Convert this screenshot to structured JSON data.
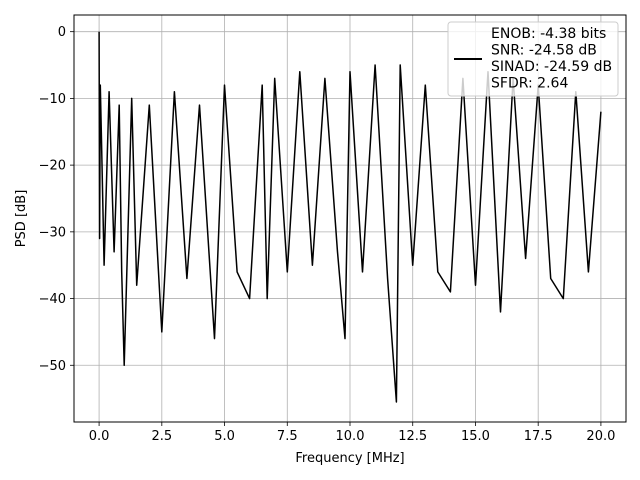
{
  "chart_data": {
    "type": "line",
    "xlabel": "Frequency [MHz]",
    "ylabel": "PSD [dB]",
    "xlim": [
      -1.0,
      21.0
    ],
    "ylim": [
      -58.5,
      2.5
    ],
    "xticks": [
      0.0,
      2.5,
      5.0,
      7.5,
      10.0,
      12.5,
      15.0,
      17.5,
      20.0
    ],
    "xtick_labels": [
      "0.0",
      "2.5",
      "5.0",
      "7.5",
      "10.0",
      "12.5",
      "15.0",
      "17.5",
      "20.0"
    ],
    "yticks": [
      0,
      -10,
      -20,
      -30,
      -40,
      -50
    ],
    "ytick_labels": [
      "0",
      "−10",
      "−20",
      "−30",
      "−40",
      "−50"
    ],
    "grid": true,
    "legend_position": "top-right",
    "legend_lines": [
      "ENOB: -4.38 bits",
      "SNR: -24.58 dB",
      "SINAD: -24.59 dB",
      "SFDR: 2.64"
    ],
    "line_color": "#000000",
    "series": [
      {
        "x": [
          0.0,
          0.02,
          0.05,
          0.1,
          0.2,
          0.4,
          0.6,
          0.8,
          0.9,
          1.0,
          1.3,
          1.5,
          2.0,
          2.5,
          3.0,
          3.5,
          4.0,
          4.6,
          5.0,
          5.5,
          6.0,
          6.5,
          6.7,
          7.0,
          7.5,
          8.0,
          8.5,
          9.0,
          9.5,
          9.8,
          10.0,
          10.5,
          11.0,
          11.5,
          11.85,
          12.0,
          12.5,
          13.0,
          13.5,
          14.0,
          14.5,
          15.0,
          15.5,
          16.0,
          16.5,
          17.0,
          17.5,
          18.0,
          18.5,
          19.0,
          19.5,
          20.0
        ],
        "y": [
          0.0,
          -31.0,
          -8.0,
          -17.0,
          -35.0,
          -9.0,
          -33.0,
          -11.0,
          -36.0,
          -50.0,
          -10.0,
          -38.0,
          -11.0,
          -45.0,
          -9.0,
          -37.0,
          -11.0,
          -46.0,
          -8.0,
          -36.0,
          -40.0,
          -8.0,
          -40.0,
          -7.0,
          -36.0,
          -6.0,
          -35.0,
          -7.0,
          -33.0,
          -46.0,
          -6.0,
          -36.0,
          -5.0,
          -37.0,
          -55.5,
          -5.0,
          -35.0,
          -8.0,
          -36.0,
          -39.0,
          -7.0,
          -38.0,
          -6.0,
          -42.0,
          -7.0,
          -34.0,
          -8.0,
          -37.0,
          -40.0,
          -9.0,
          -36.0,
          -12.0
        ]
      }
    ]
  }
}
